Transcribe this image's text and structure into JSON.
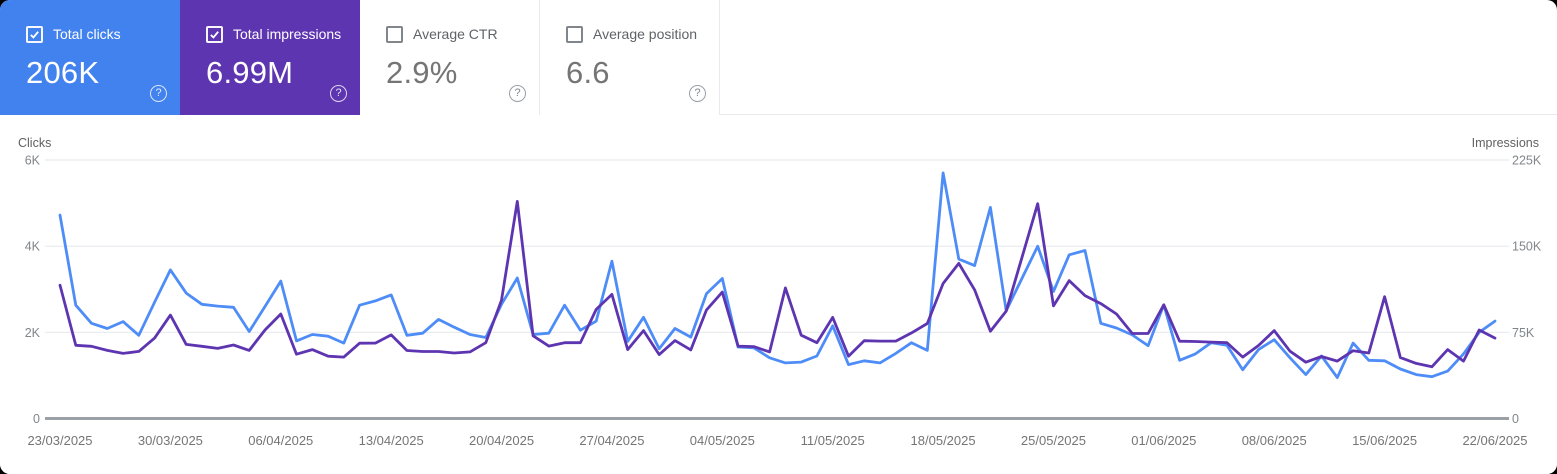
{
  "cards": [
    {
      "label": "Total clicks",
      "value": "206K",
      "selected": true,
      "color": "#4282ef"
    },
    {
      "label": "Total impressions",
      "value": "6.99M",
      "selected": true,
      "color": "#5e35b1"
    },
    {
      "label": "Average CTR",
      "value": "2.9%",
      "selected": false,
      "color": "#ffffff"
    },
    {
      "label": "Average position",
      "value": "6.6",
      "selected": false,
      "color": "#ffffff"
    }
  ],
  "help_glyph": "?",
  "chart_data": {
    "type": "line",
    "date_range": {
      "start": "23/03/2025",
      "end": "22/06/2025"
    },
    "x_tick_labels": [
      "23/03/2025",
      "30/03/2025",
      "06/04/2025",
      "13/04/2025",
      "20/04/2025",
      "27/04/2025",
      "04/05/2025",
      "11/05/2025",
      "18/05/2025",
      "25/05/2025",
      "01/06/2025",
      "08/06/2025",
      "15/06/2025",
      "22/06/2025"
    ],
    "left_axis": {
      "title": "Clicks",
      "ticks": [
        "0",
        "2K",
        "4K",
        "6K"
      ],
      "min": 0,
      "max": 6000
    },
    "right_axis": {
      "title": "Impressions",
      "ticks": [
        "0",
        "75K",
        "150K",
        "225K"
      ],
      "min": 0,
      "max": 225000
    },
    "grid": true,
    "legend_position": "none",
    "series": [
      {
        "name": "Total clicks",
        "axis": "left",
        "color": "#4e8df7",
        "values": [
          4720,
          2630,
          2210,
          2090,
          2250,
          1930,
          2700,
          3450,
          2910,
          2650,
          2610,
          2580,
          2020,
          2600,
          3190,
          1800,
          1950,
          1910,
          1750,
          2630,
          2730,
          2870,
          1930,
          1980,
          2300,
          2120,
          1950,
          1880,
          2650,
          3260,
          1950,
          1980,
          2630,
          2050,
          2260,
          3650,
          1790,
          2350,
          1620,
          2090,
          1890,
          2900,
          3250,
          1660,
          1640,
          1410,
          1290,
          1310,
          1450,
          2150,
          1250,
          1340,
          1290,
          1510,
          1760,
          1580,
          5700,
          3700,
          3550,
          4900,
          2500,
          3250,
          4000,
          2950,
          3800,
          3900,
          2210,
          2100,
          1940,
          1690,
          2640,
          1350,
          1500,
          1760,
          1700,
          1130,
          1600,
          1830,
          1410,
          1020,
          1450,
          950,
          1750,
          1350,
          1340,
          1150,
          1020,
          970,
          1100,
          1500,
          2000,
          2260
        ]
      },
      {
        "name": "Total impressions",
        "axis": "right",
        "color": "#5e35b1",
        "values": [
          116000,
          63700,
          62800,
          59300,
          56700,
          58400,
          70000,
          90000,
          64500,
          62800,
          61000,
          64000,
          59300,
          77000,
          91000,
          56000,
          60000,
          54200,
          53400,
          65500,
          65600,
          72800,
          59200,
          58300,
          58300,
          57000,
          58000,
          66000,
          103000,
          189000,
          72000,
          63000,
          66000,
          66000,
          95000,
          108000,
          60000,
          76500,
          55600,
          67800,
          59700,
          94500,
          110000,
          62900,
          62600,
          58000,
          113700,
          72500,
          66000,
          88000,
          54200,
          67700,
          67400,
          67400,
          74500,
          82700,
          117500,
          135000,
          112000,
          76000,
          93500,
          140000,
          187000,
          98000,
          120000,
          107000,
          100000,
          91000,
          74000,
          74000,
          99000,
          67300,
          67000,
          66500,
          66000,
          53400,
          63500,
          76500,
          58600,
          49000,
          54000,
          50000,
          59000,
          57000,
          106000,
          53000,
          48000,
          45000,
          60000,
          50000,
          77000,
          70000
        ]
      }
    ]
  }
}
